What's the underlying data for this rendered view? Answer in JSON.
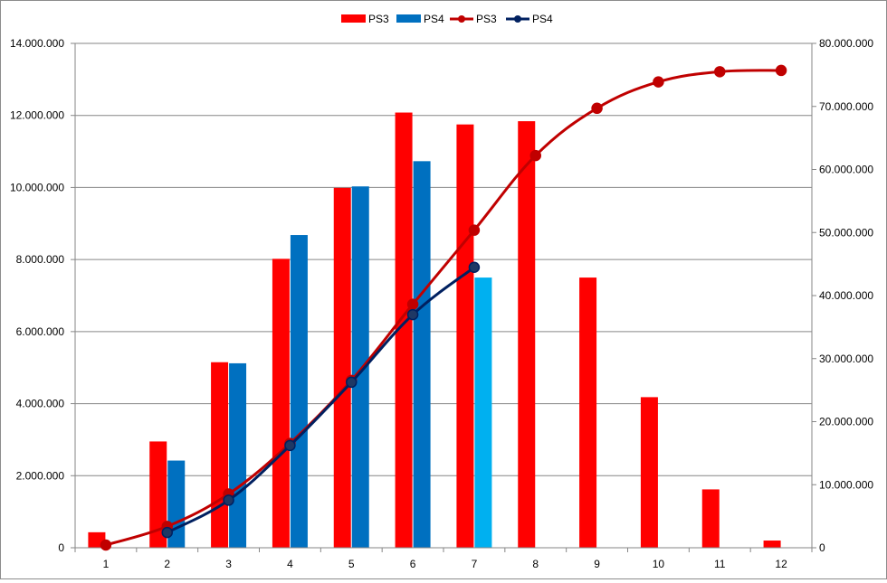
{
  "chart_data": {
    "type": "bar",
    "categories": [
      "1",
      "2",
      "3",
      "4",
      "5",
      "6",
      "7",
      "8",
      "9",
      "10",
      "11",
      "12"
    ],
    "bar_series": [
      {
        "name": "PS3",
        "color": "#ff0000",
        "values": [
          430000,
          2950000,
          5150000,
          8020000,
          9990000,
          12080000,
          11750000,
          11840000,
          7500000,
          4180000,
          1620000,
          200000
        ]
      },
      {
        "name": "PS4",
        "color": "#0070c0",
        "values": [
          null,
          2420000,
          5120000,
          8680000,
          10030000,
          10730000,
          7500000,
          null,
          null,
          null,
          null,
          null
        ],
        "point_colors": {
          "6": "#00b0f0"
        }
      }
    ],
    "line_series": [
      {
        "name": "PS3",
        "color": "#c00000",
        "marker_color": "#c00000",
        "axis": "right",
        "values": [
          430000,
          3380000,
          8530000,
          16550000,
          26540000,
          38620000,
          50370000,
          62210000,
          69710000,
          73890000,
          75510000,
          75710000
        ]
      },
      {
        "name": "PS4",
        "color": "#002060",
        "marker_color": "#1f3864",
        "axis": "right",
        "values": [
          null,
          2420000,
          7540000,
          16220000,
          26250000,
          36980000,
          44480000,
          null,
          null,
          null,
          null,
          null
        ]
      }
    ],
    "y_left": {
      "min": 0,
      "max": 14000000,
      "step": 2000000,
      "tick_labels": [
        "0",
        "2.000.000",
        "4.000.000",
        "6.000.000",
        "8.000.000",
        "10.000.000",
        "12.000.000",
        "14.000.000"
      ]
    },
    "y_right": {
      "min": 0,
      "max": 80000000,
      "step": 10000000,
      "tick_labels": [
        "0",
        "10.000.000",
        "20.000.000",
        "30.000.000",
        "40.000.000",
        "50.000.000",
        "60.000.000",
        "70.000.000",
        "80.000.000"
      ]
    },
    "grid": true,
    "legend_position": "top",
    "legend": [
      {
        "label": "PS3",
        "kind": "bar",
        "color": "#ff0000"
      },
      {
        "label": "PS4",
        "kind": "bar",
        "color": "#0070c0"
      },
      {
        "label": "PS3",
        "kind": "line",
        "color": "#c00000"
      },
      {
        "label": "PS4",
        "kind": "line",
        "color": "#002060"
      }
    ]
  }
}
